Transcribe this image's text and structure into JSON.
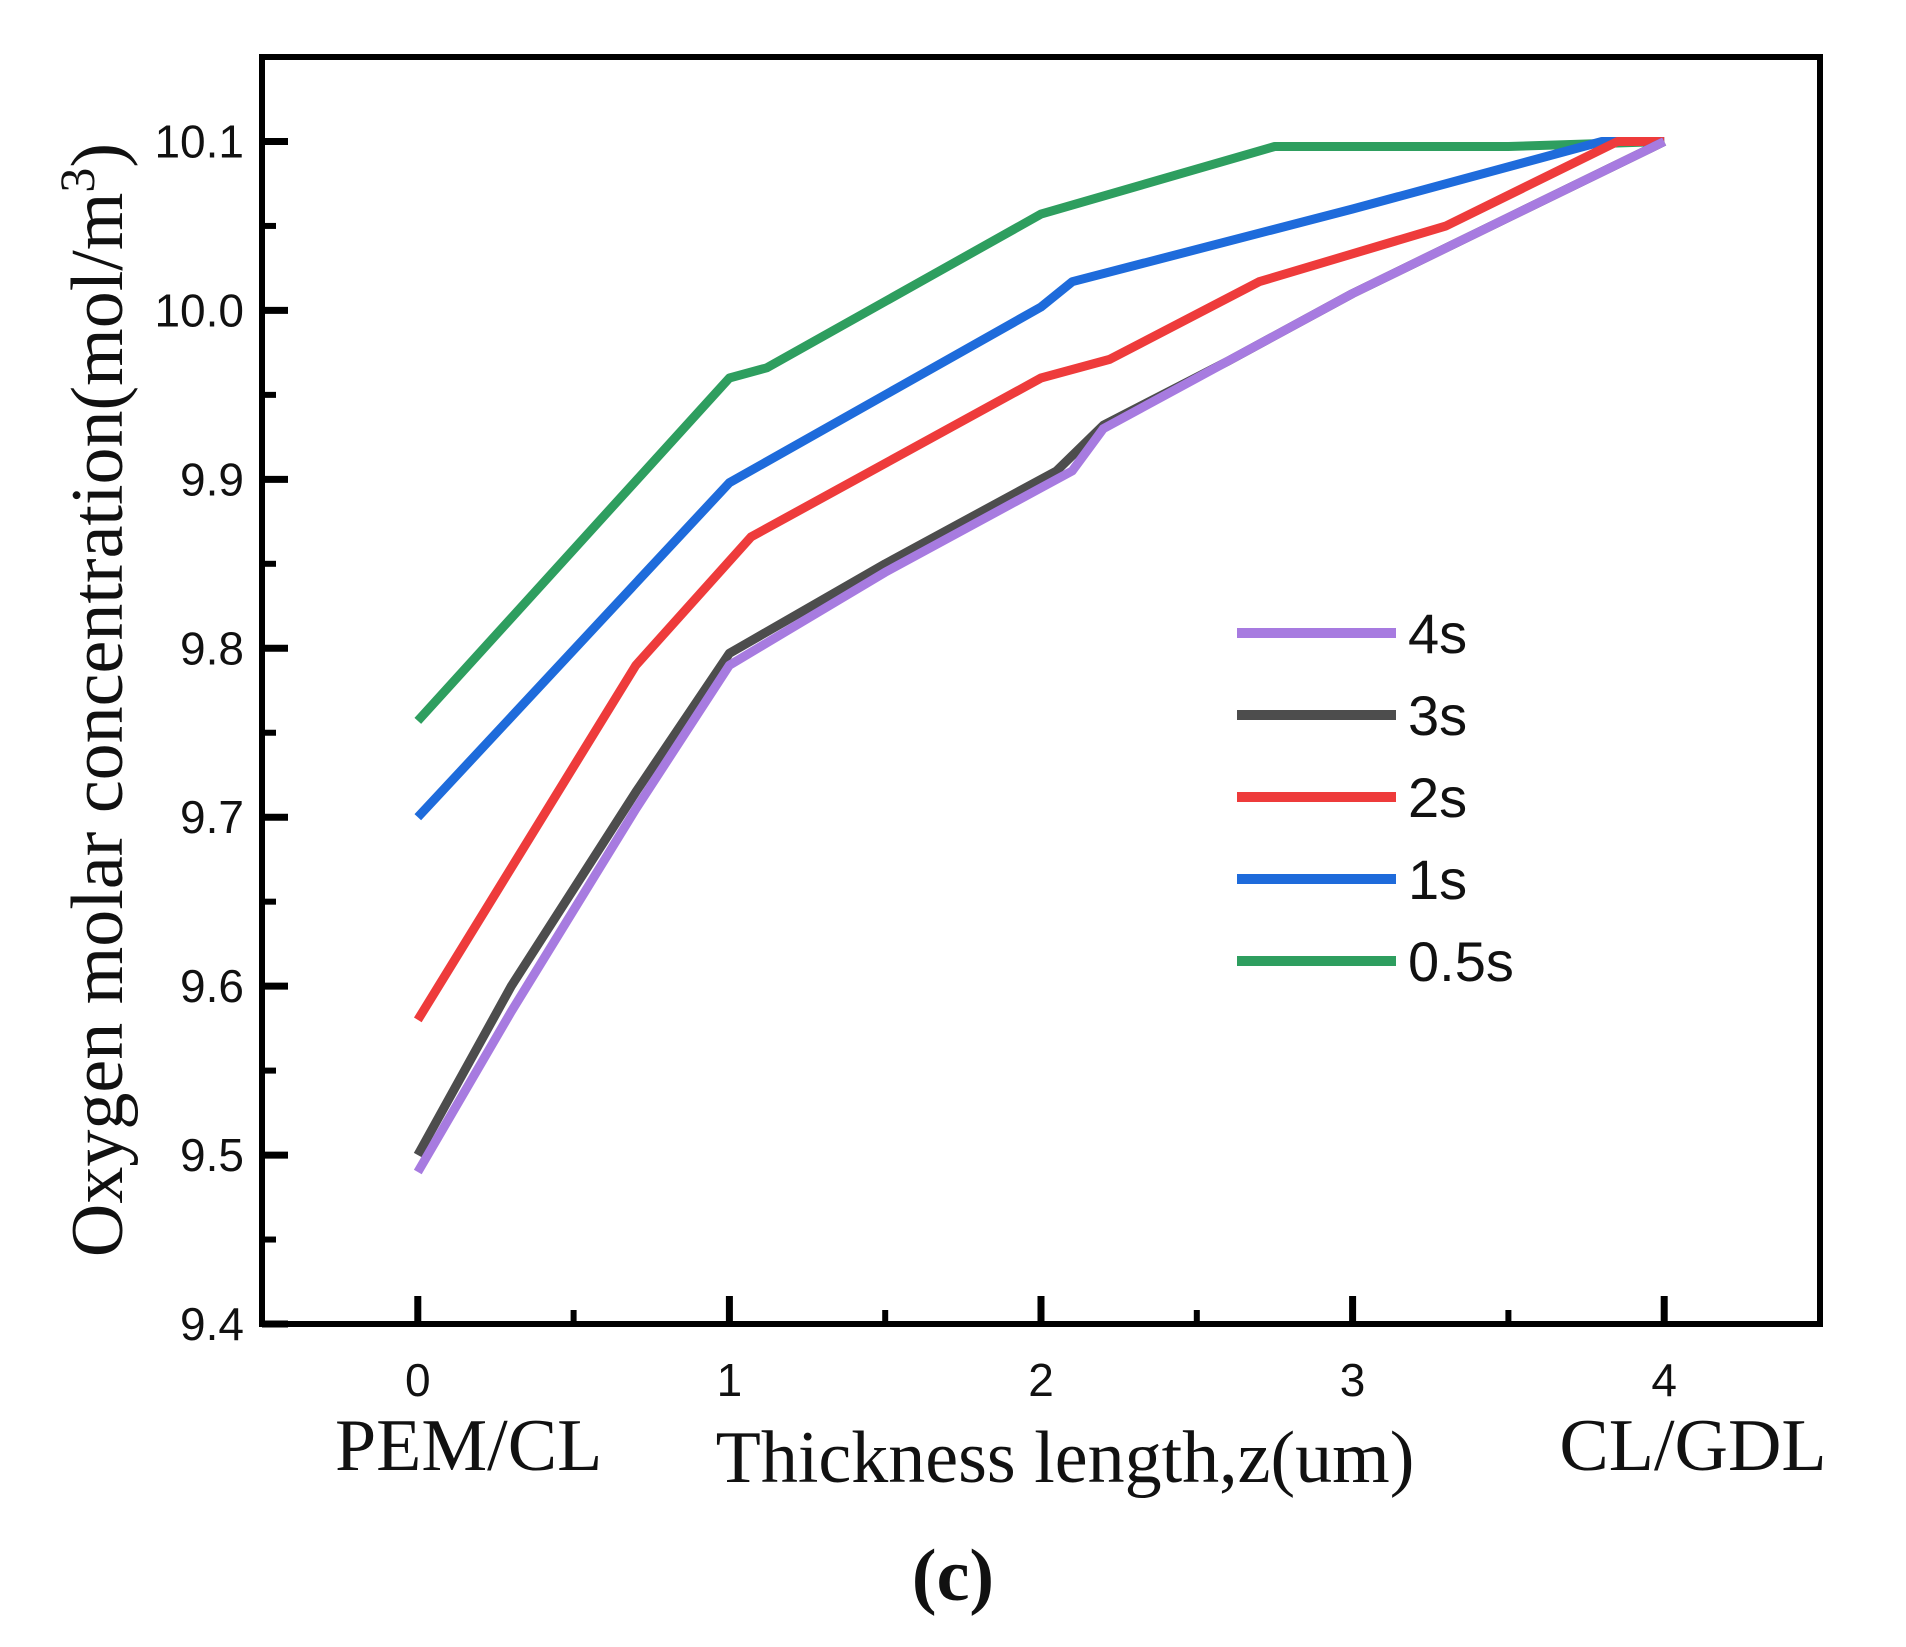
{
  "chart_data": {
    "type": "line",
    "title": "",
    "xlabel": "Thickness length,z(um)",
    "ylabel": "Oxygen molar concentration(mol/m",
    "ylabel_superscript": "3",
    "ylabel_close": ")",
    "xlim": [
      -0.5,
      4.5
    ],
    "ylim": [
      9.4,
      10.15
    ],
    "x_ticks": [
      0,
      1,
      2,
      3,
      4
    ],
    "x_tick_labels": [
      "0",
      "1",
      "2",
      "3",
      "4"
    ],
    "x_minor_ticks": [
      0.5,
      1.5,
      2.5,
      3.5
    ],
    "y_ticks": [
      9.4,
      9.5,
      9.6,
      9.7,
      9.8,
      9.9,
      10.0,
      10.1
    ],
    "y_tick_labels": [
      "9.4",
      "9.5",
      "9.6",
      "9.7",
      "9.8",
      "9.9",
      "10.0",
      "10.1"
    ],
    "y_minor_ticks": [
      9.45,
      9.55,
      9.65,
      9.75,
      9.85,
      9.95,
      10.05
    ],
    "boundary_labels": {
      "left": "PEM/CL",
      "right": "CL/GDL"
    },
    "panel_label": "(c)",
    "grid": false,
    "legend_position": "center-right",
    "series": [
      {
        "name": "4s",
        "color": "#a77be0",
        "x": [
          0,
          0.3,
          0.7,
          1.0,
          1.5,
          2.0,
          2.1,
          2.2,
          2.6,
          3.0,
          3.5,
          4.0
        ],
        "y": [
          9.49,
          9.585,
          9.705,
          9.79,
          9.845,
          9.895,
          9.905,
          9.93,
          9.97,
          10.01,
          10.055,
          10.1
        ]
      },
      {
        "name": "3s",
        "color": "#4d4d4d",
        "x": [
          0,
          0.3,
          0.7,
          1.0,
          1.5,
          2.05,
          2.2,
          2.6,
          3.0,
          3.5,
          4.0
        ],
        "y": [
          9.5,
          9.6,
          9.715,
          9.797,
          9.85,
          9.905,
          9.932,
          9.97,
          10.01,
          10.055,
          10.1
        ]
      },
      {
        "name": "2s",
        "color": "#ee3b3b",
        "x": [
          0,
          0.7,
          1.07,
          2.0,
          2.22,
          2.7,
          3.3,
          3.85,
          4.0
        ],
        "y": [
          9.58,
          9.79,
          9.866,
          9.96,
          9.971,
          10.017,
          10.05,
          10.1,
          10.1
        ]
      },
      {
        "name": "1s",
        "color": "#1e6bdb",
        "x": [
          0,
          1.0,
          2.0,
          2.1,
          3.0,
          3.8,
          4.0
        ],
        "y": [
          9.7,
          9.898,
          10.002,
          10.017,
          10.06,
          10.1,
          10.1
        ]
      },
      {
        "name": "0.5s",
        "color": "#2e9e5f",
        "x": [
          0,
          1.0,
          1.12,
          2.0,
          2.75,
          3.5,
          4.0
        ],
        "y": [
          9.757,
          9.96,
          9.966,
          10.057,
          10.097,
          10.097,
          10.1
        ]
      }
    ],
    "legend_order": [
      "4s",
      "3s",
      "2s",
      "1s",
      "0.5s"
    ]
  }
}
